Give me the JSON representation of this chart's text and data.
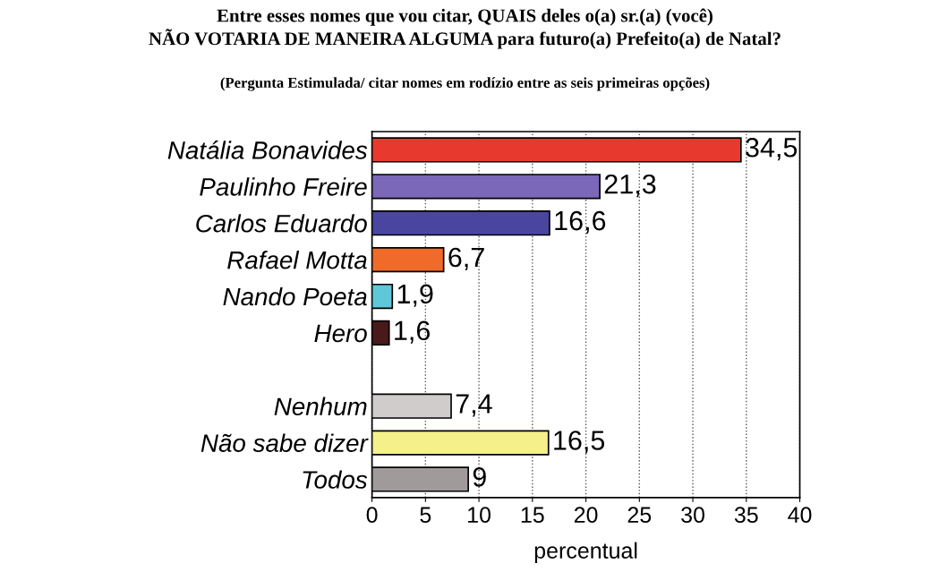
{
  "chart_data": {
    "type": "bar",
    "orientation": "horizontal",
    "title": "Entre esses nomes que vou citar, QUAIS deles o(a) sr.(a) (você)\nNÃO VOTARIA DE MANEIRA ALGUMA para futuro(a) Prefeito(a) de Natal?",
    "subtitle": "(Pergunta Estimulada/ citar nomes em rodízio entre as seis primeiras opções)",
    "categories": [
      "Natália Bonavides",
      "Paulinho Freire",
      "Carlos Eduardo",
      "Rafael Motta",
      "Nando Poeta",
      "Hero",
      null,
      "Nenhum",
      "Não sabe dizer",
      "Todos"
    ],
    "values": [
      34.5,
      21.3,
      16.6,
      6.7,
      1.9,
      1.6,
      null,
      7.4,
      16.5,
      9
    ],
    "value_labels": [
      "34,5",
      "21,3",
      "16,6",
      "6,7",
      "1,9",
      "1,6",
      null,
      "7,4",
      "16,5",
      "9"
    ],
    "colors": [
      "#e8392f",
      "#7b68b8",
      "#4a46a0",
      "#f06a2a",
      "#5ec8d8",
      "#4a1a1a",
      null,
      "#d0cccc",
      "#f5f08a",
      "#a09a9a"
    ],
    "xlabel": "percentual",
    "xlim": [
      0,
      40
    ],
    "xticks": [
      0,
      5,
      10,
      15,
      20,
      25,
      30,
      35,
      40
    ],
    "grid": "x"
  }
}
